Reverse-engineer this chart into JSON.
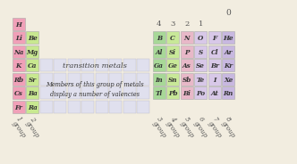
{
  "background_color": "#f2ede0",
  "group1_elements": [
    "H",
    "Li",
    "Na",
    "K",
    "Rb",
    "Cs",
    "Fr"
  ],
  "group2_elements": [
    "Be",
    "Mg",
    "Ca",
    "Sr",
    "Ba",
    "Ra"
  ],
  "group1_color": "#f0a0b8",
  "group2_color": "#c8e890",
  "transition_color": "#e0e0ee",
  "transition_border": "#bbbbcc",
  "transition_text": "transition metals",
  "annotation_text": "Members of this group of metals\ndisplay a number of valencies",
  "right_elements": [
    [
      "B",
      "C",
      "N",
      "O",
      "F",
      "He"
    ],
    [
      "Al",
      "Si",
      "P",
      "S",
      "Cl",
      "Ar"
    ],
    [
      "Ga",
      "Ge",
      "As",
      "Se",
      "Br",
      "Kr"
    ],
    [
      "In",
      "Sn",
      "Sb",
      "Te",
      "I",
      "Xe"
    ],
    [
      "Tl",
      "Pb",
      "Bi",
      "Po",
      "At",
      "Rn"
    ]
  ],
  "right_colors": [
    [
      "#a8d898",
      "#c8e898",
      "#e8b8c8",
      "#d8c8e8",
      "#d8c8e8",
      "#c8b8e0"
    ],
    [
      "#a8d898",
      "#c8e898",
      "#e8b8c8",
      "#d8c8e8",
      "#d8c8e8",
      "#c8b8e0"
    ],
    [
      "#a8d898",
      "#c8e898",
      "#e8b8c8",
      "#d8c8e8",
      "#d8c8e8",
      "#c8b8e0"
    ],
    [
      "#a8d898",
      "#c8e898",
      "#e8b8c8",
      "#d8c8e8",
      "#d8c8e8",
      "#c8b8e0"
    ],
    [
      "#a8d898",
      "#c8e898",
      "#e8b8c8",
      "#d8c8e8",
      "#d8c8e8",
      "#c8b8e0"
    ]
  ],
  "top_labels": [
    "4",
    "3",
    "2",
    "1"
  ],
  "top_label_0": "0",
  "bottom_left_labels": [
    [
      "1",
      "group"
    ],
    [
      "2",
      "group"
    ]
  ],
  "bottom_right_labels": [
    [
      "3",
      "group"
    ],
    [
      "4",
      "group"
    ],
    [
      "5",
      "group"
    ],
    [
      "6",
      "group"
    ],
    [
      "7",
      "group"
    ],
    [
      "8",
      "group"
    ]
  ],
  "cell_border": "#aaaaaa",
  "text_color": "#333333",
  "label_color": "#555555"
}
